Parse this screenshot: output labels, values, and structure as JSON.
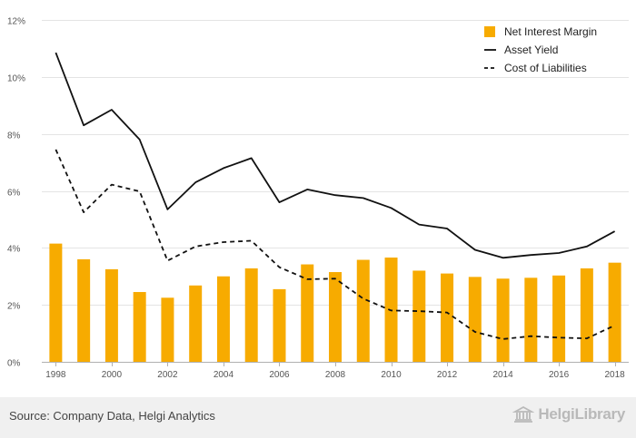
{
  "chart_data": {
    "type": "bar",
    "categories": [
      "1998",
      "1999",
      "2000",
      "2001",
      "2002",
      "2003",
      "2004",
      "2005",
      "2006",
      "2007",
      "2008",
      "2009",
      "2010",
      "2011",
      "2012",
      "2013",
      "2014",
      "2015",
      "2016",
      "2017",
      "2018"
    ],
    "x_tick_labels": [
      "1998",
      "2000",
      "2002",
      "2004",
      "2006",
      "2008",
      "2010",
      "2012",
      "2014",
      "2016",
      "2018"
    ],
    "y_tick_labels": [
      "0%",
      "2%",
      "4%",
      "6%",
      "8%",
      "10%",
      "12%"
    ],
    "ylim": [
      0,
      12
    ],
    "grid": "horizontal",
    "legend_position": "top-right",
    "series": [
      {
        "name": "Net Interest Margin",
        "type": "bar",
        "style": "solid",
        "values": [
          4.15,
          3.6,
          3.25,
          2.45,
          2.25,
          2.68,
          3.0,
          3.28,
          2.55,
          3.42,
          3.15,
          3.58,
          3.66,
          3.2,
          3.1,
          2.98,
          2.92,
          2.95,
          3.03,
          3.28,
          3.48
        ]
      },
      {
        "name": "Asset Yield",
        "type": "line",
        "style": "solid",
        "values": [
          10.85,
          8.3,
          8.85,
          7.8,
          5.35,
          6.3,
          6.8,
          7.15,
          5.6,
          6.05,
          5.85,
          5.75,
          5.4,
          4.82,
          4.68,
          3.93,
          3.65,
          3.75,
          3.82,
          4.05,
          4.58
        ]
      },
      {
        "name": "Cost of Liabilities",
        "type": "line",
        "style": "dashed",
        "values": [
          7.45,
          5.25,
          6.22,
          5.98,
          3.55,
          4.05,
          4.2,
          4.25,
          3.32,
          2.9,
          2.92,
          2.22,
          1.8,
          1.78,
          1.73,
          1.05,
          0.8,
          0.9,
          0.85,
          0.82,
          1.28
        ]
      }
    ],
    "colors": {
      "bar": "#f7ab00",
      "line": "#111111",
      "grid": "#e4e4e4",
      "axis": "#b0b0b0",
      "tick_text": "#555555"
    }
  },
  "footer": {
    "source": "Source: Company Data, Helgi Analytics",
    "brand": "HelgiLibrary",
    "brand_icon": "library-building-icon"
  }
}
